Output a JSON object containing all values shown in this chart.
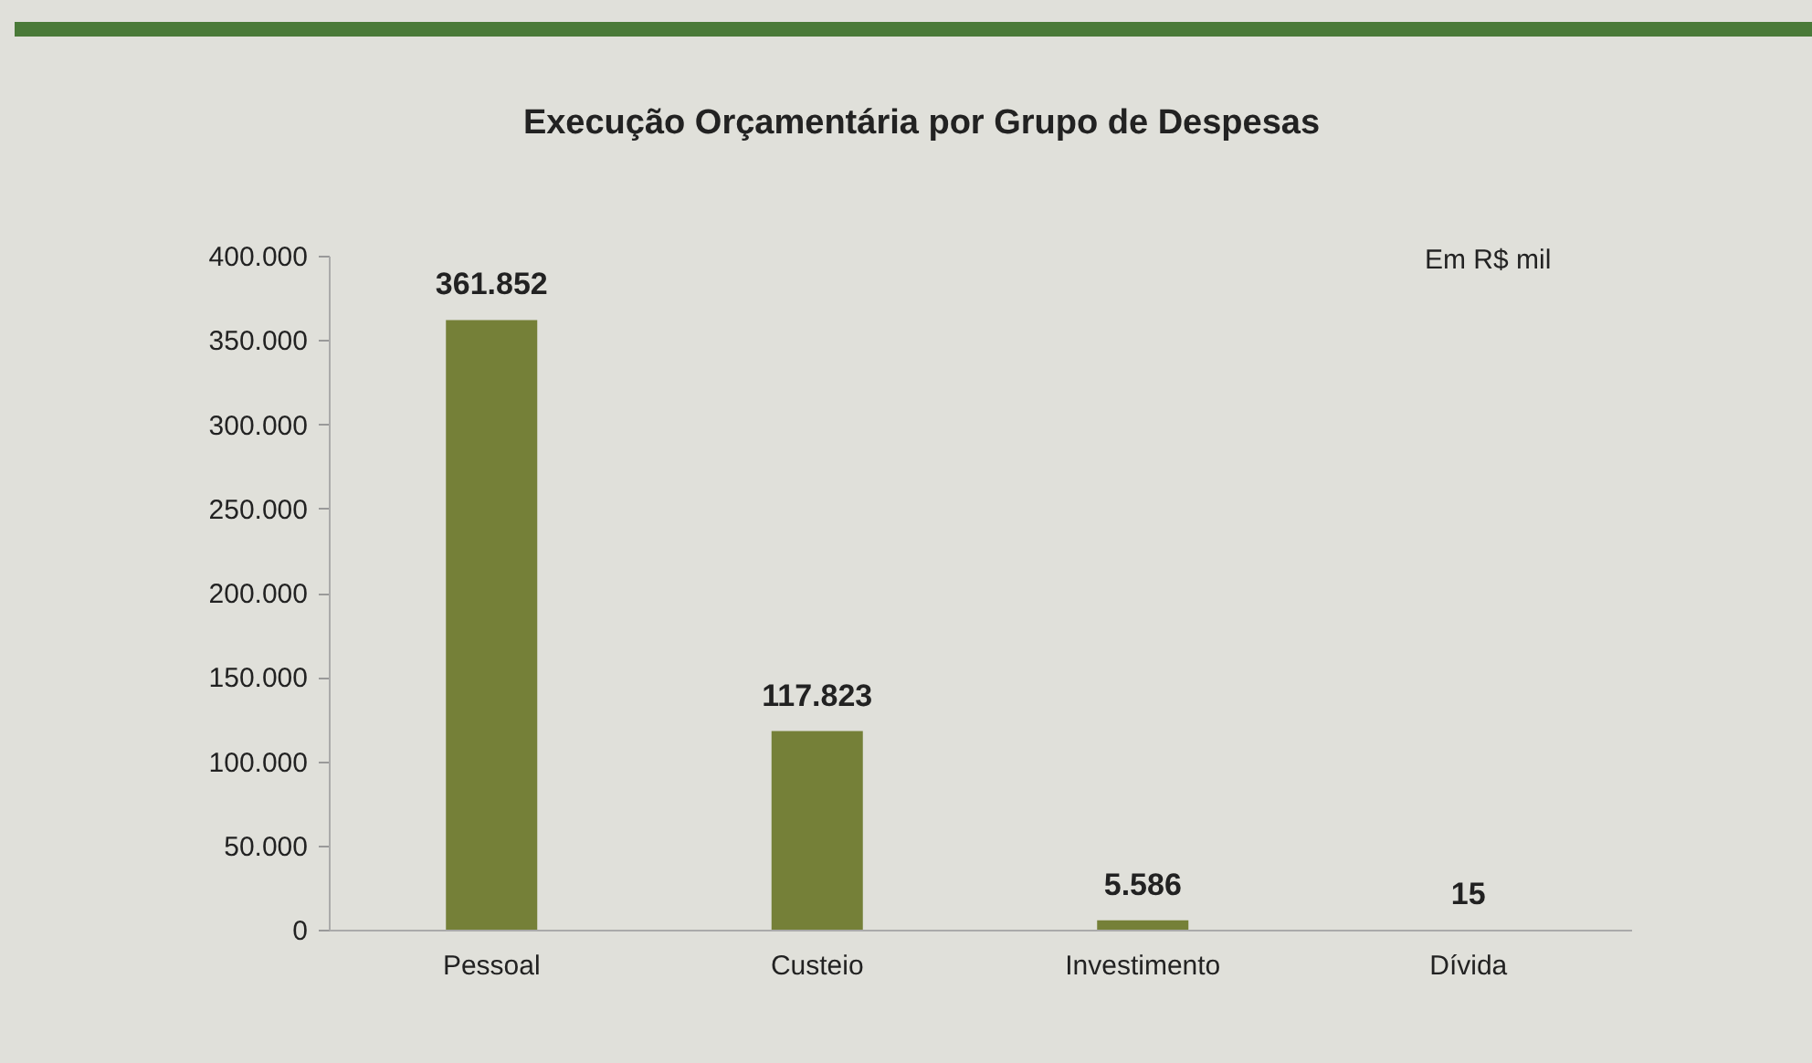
{
  "chart_data": {
    "type": "bar",
    "title": "Execução Orçamentária por Grupo de Despesas",
    "categories": [
      "Pessoal",
      "Custeio",
      "Investimento",
      "Dívida"
    ],
    "values": [
      361852,
      117823,
      5586,
      15
    ],
    "value_labels": [
      "361.852",
      "117.823",
      "5.586",
      "15"
    ],
    "color": "#758038",
    "ylim": [
      0,
      400000
    ],
    "yticks": [
      {
        "value": 0,
        "label": "0"
      },
      {
        "value": 50000,
        "label": "50.000"
      },
      {
        "value": 100000,
        "label": "100.000"
      },
      {
        "value": 150000,
        "label": "150.000"
      },
      {
        "value": 200000,
        "label": "200.000"
      },
      {
        "value": 250000,
        "label": "250.000"
      },
      {
        "value": 300000,
        "label": "300.000"
      },
      {
        "value": 350000,
        "label": "350.000"
      },
      {
        "value": 400000,
        "label": "400.000"
      }
    ],
    "annotations": [
      "Em R$ mil"
    ]
  }
}
